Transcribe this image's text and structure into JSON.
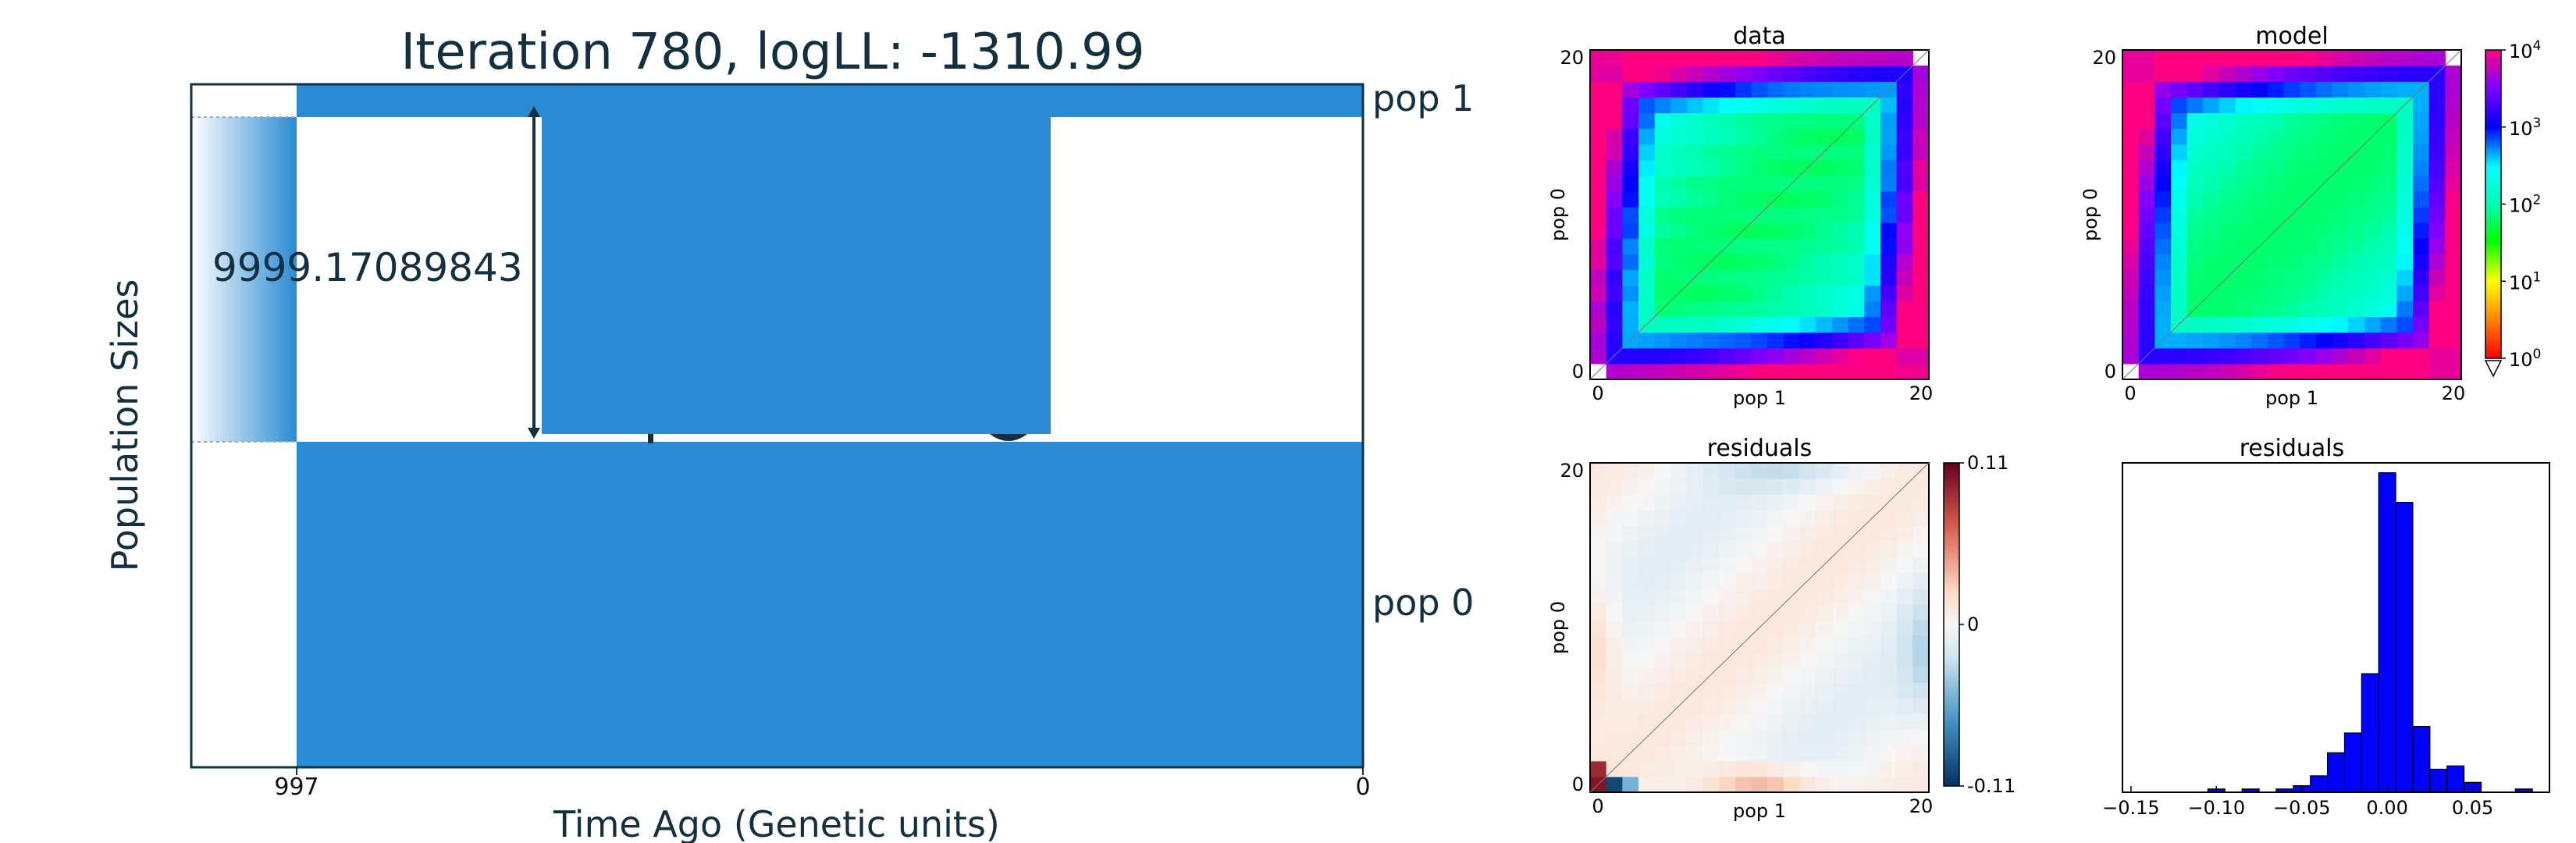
{
  "demography": {
    "title": "Iteration 780, logLL:   -1310.99",
    "xlabel": "Time Ago (Genetic units)",
    "ylabel": "Population Sizes",
    "x_ticks": [
      "997",
      "0"
    ],
    "pop_labels": [
      "pop 1",
      "pop 0"
    ],
    "size_annotation": "9999.17089843",
    "fill_color": "#2a8bd4"
  },
  "chart_data": [
    {
      "type": "heatmap",
      "title": "data",
      "xlabel": "pop 1",
      "ylabel": "pop 0",
      "x_ticks": [
        "0",
        "20"
      ],
      "y_ticks": [
        "0",
        "20"
      ],
      "grid_size": 21,
      "scale": "log",
      "colorbar": false
    },
    {
      "type": "heatmap",
      "title": "model",
      "xlabel": "pop 1",
      "ylabel": "pop 0",
      "x_ticks": [
        "0",
        "20"
      ],
      "y_ticks": [
        "0",
        "20"
      ],
      "grid_size": 21,
      "scale": "log",
      "colorbar": true,
      "colorbar_ticks": [
        {
          "base": "10",
          "exp": "4",
          "value": 4
        },
        {
          "base": "10",
          "exp": "3",
          "value": 3
        },
        {
          "base": "10",
          "exp": "2",
          "value": 2
        },
        {
          "base": "10",
          "exp": "1",
          "value": 1
        },
        {
          "base": "10",
          "exp": "0",
          "value": 0
        }
      ]
    },
    {
      "type": "heatmap",
      "title": "residuals",
      "xlabel": "pop 1",
      "ylabel": "pop 0",
      "x_ticks": [
        "0",
        "20"
      ],
      "y_ticks": [
        "0",
        "20"
      ],
      "grid_size": 21,
      "colorbar": true,
      "colorbar_ticks": [
        "0.11",
        "0",
        "-0.11"
      ],
      "vmin": -0.11,
      "vmax": 0.11
    },
    {
      "type": "bar",
      "title": "residuals",
      "x_ticks": [
        "−0.15",
        "−0.10",
        "−0.05",
        "0.00",
        "0.05"
      ],
      "x_tick_values": [
        -0.15,
        -0.1,
        -0.05,
        0.0,
        0.05
      ],
      "xlim": [
        -0.155,
        0.095
      ],
      "bin_width": 0.01,
      "bin_starts": [
        -0.105,
        -0.085,
        -0.065,
        -0.055,
        -0.045,
        -0.035,
        -0.025,
        -0.015,
        -0.005,
        0.005,
        0.015,
        0.025,
        0.035,
        0.045,
        0.075
      ],
      "counts": [
        1,
        1,
        1,
        2,
        5,
        12,
        18,
        36,
        97,
        88,
        20,
        7,
        8,
        3,
        1
      ],
      "ylim": [
        0,
        100
      ],
      "bar_color": "#0000ff"
    }
  ]
}
